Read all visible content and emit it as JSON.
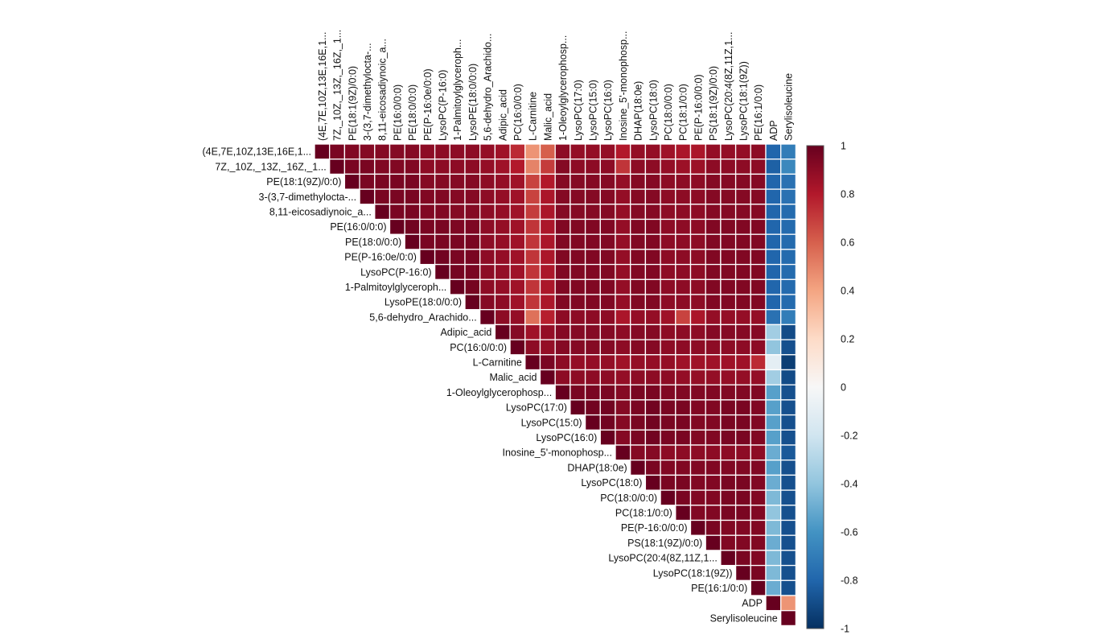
{
  "chart_data": {
    "type": "heatmap",
    "subtype": "upper-triangle correlation matrix",
    "labels": [
      "(4E,7E,10Z,13E,16E,1...",
      "7Z,_10Z,_13Z,_16Z,_1...",
      "PE(18:1(9Z)/0:0)",
      "3-(3,7-dimethylocta-...",
      "8,11-eicosadiynoic_a...",
      "PE(16:0/0:0)",
      "PE(18:0/0:0)",
      "PE(P-16:0e/0:0)",
      "LysoPC(P-16:0)",
      "1-Palmitoylglyceroph...",
      "LysoPE(18:0/0:0)",
      "5,6-dehydro_Arachido...",
      "Adipic_acid",
      "PC(16:0/0:0)",
      "L-Carnitine",
      "Malic_acid",
      "1-Oleoylglycerophosp...",
      "LysoPC(17:0)",
      "LysoPC(15:0)",
      "LysoPC(16:0)",
      "Inosine_5'-monophosp...",
      "DHAP(18:0e)",
      "LysoPC(18:0)",
      "PC(18:0/0:0)",
      "PC(18:1/0:0)",
      "PE(P-16:0/0:0)",
      "PS(18:1(9Z)/0:0)",
      "LysoPC(20:4(8Z,11Z,1...",
      "LysoPC(18:1(9Z))",
      "PE(16:1/0:0)",
      "ADP",
      "Serylisoleucine"
    ],
    "matrix": [
      [
        1.0,
        0.95,
        0.93,
        0.92,
        0.92,
        0.92,
        0.92,
        0.9,
        0.9,
        0.9,
        0.9,
        0.88,
        0.85,
        0.75,
        0.45,
        0.6,
        0.9,
        0.88,
        0.88,
        0.88,
        0.8,
        0.88,
        0.88,
        0.85,
        0.82,
        0.82,
        0.88,
        0.88,
        0.88,
        0.9,
        -0.8,
        -0.7
      ],
      [
        null,
        1.0,
        0.95,
        0.95,
        0.93,
        0.93,
        0.93,
        0.9,
        0.9,
        0.9,
        0.9,
        0.88,
        0.85,
        0.8,
        0.5,
        0.7,
        0.92,
        0.9,
        0.9,
        0.9,
        0.72,
        0.9,
        0.9,
        0.88,
        0.86,
        0.86,
        0.9,
        0.9,
        0.9,
        0.9,
        -0.82,
        -0.65
      ],
      [
        null,
        null,
        1.0,
        0.95,
        0.95,
        0.95,
        0.95,
        0.92,
        0.92,
        0.92,
        0.92,
        0.9,
        0.88,
        0.85,
        0.68,
        0.8,
        0.92,
        0.92,
        0.92,
        0.92,
        0.88,
        0.92,
        0.92,
        0.9,
        0.9,
        0.9,
        0.92,
        0.92,
        0.92,
        0.92,
        -0.8,
        -0.75
      ],
      [
        null,
        null,
        null,
        1.0,
        0.95,
        0.95,
        0.95,
        0.93,
        0.93,
        0.92,
        0.92,
        0.9,
        0.88,
        0.85,
        0.68,
        0.82,
        0.92,
        0.92,
        0.92,
        0.92,
        0.88,
        0.92,
        0.92,
        0.9,
        0.9,
        0.9,
        0.92,
        0.92,
        0.92,
        0.92,
        -0.8,
        -0.75
      ],
      [
        null,
        null,
        null,
        null,
        1.0,
        0.95,
        0.95,
        0.93,
        0.93,
        0.92,
        0.92,
        0.9,
        0.88,
        0.85,
        0.7,
        0.82,
        0.92,
        0.92,
        0.92,
        0.92,
        0.88,
        0.92,
        0.92,
        0.9,
        0.9,
        0.9,
        0.92,
        0.92,
        0.92,
        0.92,
        -0.8,
        -0.78
      ],
      [
        null,
        null,
        null,
        null,
        null,
        1.0,
        0.97,
        0.95,
        0.95,
        0.94,
        0.94,
        0.9,
        0.88,
        0.85,
        0.72,
        0.82,
        0.93,
        0.93,
        0.93,
        0.93,
        0.88,
        0.93,
        0.93,
        0.9,
        0.9,
        0.9,
        0.93,
        0.93,
        0.93,
        0.93,
        -0.8,
        -0.78
      ],
      [
        null,
        null,
        null,
        null,
        null,
        null,
        1.0,
        0.95,
        0.95,
        0.95,
        0.95,
        0.9,
        0.88,
        0.85,
        0.72,
        0.82,
        0.93,
        0.93,
        0.93,
        0.93,
        0.88,
        0.93,
        0.93,
        0.9,
        0.9,
        0.9,
        0.93,
        0.93,
        0.93,
        0.93,
        -0.8,
        -0.78
      ],
      [
        null,
        null,
        null,
        null,
        null,
        null,
        null,
        1.0,
        0.97,
        0.95,
        0.95,
        0.9,
        0.88,
        0.85,
        0.72,
        0.82,
        0.93,
        0.93,
        0.93,
        0.93,
        0.88,
        0.93,
        0.93,
        0.9,
        0.9,
        0.9,
        0.93,
        0.93,
        0.93,
        0.93,
        -0.8,
        -0.78
      ],
      [
        null,
        null,
        null,
        null,
        null,
        null,
        null,
        null,
        1.0,
        0.96,
        0.95,
        0.9,
        0.88,
        0.85,
        0.72,
        0.82,
        0.93,
        0.93,
        0.93,
        0.93,
        0.88,
        0.93,
        0.93,
        0.9,
        0.9,
        0.9,
        0.93,
        0.93,
        0.93,
        0.93,
        -0.8,
        -0.78
      ],
      [
        null,
        null,
        null,
        null,
        null,
        null,
        null,
        null,
        null,
        1.0,
        0.96,
        0.9,
        0.88,
        0.85,
        0.72,
        0.82,
        0.93,
        0.93,
        0.93,
        0.93,
        0.88,
        0.93,
        0.93,
        0.9,
        0.9,
        0.9,
        0.93,
        0.93,
        0.93,
        0.93,
        -0.8,
        -0.78
      ],
      [
        null,
        null,
        null,
        null,
        null,
        null,
        null,
        null,
        null,
        null,
        1.0,
        0.92,
        0.9,
        0.85,
        0.72,
        0.82,
        0.93,
        0.93,
        0.93,
        0.93,
        0.88,
        0.93,
        0.93,
        0.9,
        0.9,
        0.9,
        0.93,
        0.93,
        0.93,
        0.93,
        -0.8,
        -0.78
      ],
      [
        null,
        null,
        null,
        null,
        null,
        null,
        null,
        null,
        null,
        null,
        null,
        1.0,
        0.9,
        0.88,
        0.55,
        0.78,
        0.9,
        0.9,
        0.9,
        0.9,
        0.82,
        0.88,
        0.88,
        0.85,
        0.68,
        0.82,
        0.88,
        0.88,
        0.88,
        0.88,
        -0.75,
        -0.7
      ],
      [
        null,
        null,
        null,
        null,
        null,
        null,
        null,
        null,
        null,
        null,
        null,
        null,
        1.0,
        0.92,
        0.85,
        0.88,
        0.92,
        0.92,
        0.92,
        0.92,
        0.9,
        0.92,
        0.92,
        0.9,
        0.9,
        0.9,
        0.92,
        0.92,
        0.92,
        0.92,
        -0.35,
        -0.9
      ],
      [
        null,
        null,
        null,
        null,
        null,
        null,
        null,
        null,
        null,
        null,
        null,
        null,
        null,
        1.0,
        0.9,
        0.88,
        0.92,
        0.92,
        0.92,
        0.92,
        0.9,
        0.92,
        0.92,
        0.9,
        0.9,
        0.9,
        0.9,
        0.9,
        0.9,
        0.9,
        -0.4,
        -0.88
      ],
      [
        null,
        null,
        null,
        null,
        null,
        null,
        null,
        null,
        null,
        null,
        null,
        null,
        null,
        null,
        1.0,
        0.95,
        0.9,
        0.88,
        0.88,
        0.88,
        0.85,
        0.88,
        0.88,
        0.88,
        0.85,
        0.85,
        0.85,
        0.85,
        0.85,
        0.75,
        -0.1,
        -0.95
      ],
      [
        null,
        null,
        null,
        null,
        null,
        null,
        null,
        null,
        null,
        null,
        null,
        null,
        null,
        null,
        null,
        1.0,
        0.9,
        0.9,
        0.9,
        0.9,
        0.88,
        0.9,
        0.9,
        0.9,
        0.88,
        0.88,
        0.88,
        0.88,
        0.88,
        0.88,
        -0.35,
        -0.9
      ],
      [
        null,
        null,
        null,
        null,
        null,
        null,
        null,
        null,
        null,
        null,
        null,
        null,
        null,
        null,
        null,
        null,
        1.0,
        0.95,
        0.95,
        0.95,
        0.92,
        0.95,
        0.95,
        0.93,
        0.93,
        0.93,
        0.93,
        0.93,
        0.93,
        0.93,
        -0.55,
        -0.88
      ],
      [
        null,
        null,
        null,
        null,
        null,
        null,
        null,
        null,
        null,
        null,
        null,
        null,
        null,
        null,
        null,
        null,
        null,
        1.0,
        0.97,
        0.97,
        0.92,
        0.95,
        0.97,
        0.95,
        0.95,
        0.93,
        0.93,
        0.95,
        0.95,
        0.93,
        -0.55,
        -0.88
      ],
      [
        null,
        null,
        null,
        null,
        null,
        null,
        null,
        null,
        null,
        null,
        null,
        null,
        null,
        null,
        null,
        null,
        null,
        null,
        1.0,
        0.97,
        0.92,
        0.95,
        0.97,
        0.95,
        0.95,
        0.93,
        0.93,
        0.95,
        0.95,
        0.93,
        -0.55,
        -0.88
      ],
      [
        null,
        null,
        null,
        null,
        null,
        null,
        null,
        null,
        null,
        null,
        null,
        null,
        null,
        null,
        null,
        null,
        null,
        null,
        null,
        1.0,
        0.92,
        0.95,
        0.97,
        0.95,
        0.95,
        0.93,
        0.93,
        0.95,
        0.95,
        0.93,
        -0.55,
        -0.88
      ],
      [
        null,
        null,
        null,
        null,
        null,
        null,
        null,
        null,
        null,
        null,
        null,
        null,
        null,
        null,
        null,
        null,
        null,
        null,
        null,
        null,
        1.0,
        0.92,
        0.92,
        0.9,
        0.9,
        0.9,
        0.9,
        0.9,
        0.9,
        0.9,
        -0.5,
        -0.85
      ],
      [
        null,
        null,
        null,
        null,
        null,
        null,
        null,
        null,
        null,
        null,
        null,
        null,
        null,
        null,
        null,
        null,
        null,
        null,
        null,
        null,
        null,
        1.0,
        0.95,
        0.93,
        0.93,
        0.93,
        0.93,
        0.93,
        0.93,
        0.93,
        -0.55,
        -0.88
      ],
      [
        null,
        null,
        null,
        null,
        null,
        null,
        null,
        null,
        null,
        null,
        null,
        null,
        null,
        null,
        null,
        null,
        null,
        null,
        null,
        null,
        null,
        null,
        1.0,
        0.95,
        0.95,
        0.93,
        0.93,
        0.95,
        0.95,
        0.93,
        -0.5,
        -0.88
      ],
      [
        null,
        null,
        null,
        null,
        null,
        null,
        null,
        null,
        null,
        null,
        null,
        null,
        null,
        null,
        null,
        null,
        null,
        null,
        null,
        null,
        null,
        null,
        null,
        1.0,
        0.95,
        0.93,
        0.93,
        0.95,
        0.95,
        0.93,
        -0.45,
        -0.88
      ],
      [
        null,
        null,
        null,
        null,
        null,
        null,
        null,
        null,
        null,
        null,
        null,
        null,
        null,
        null,
        null,
        null,
        null,
        null,
        null,
        null,
        null,
        null,
        null,
        null,
        1.0,
        0.93,
        0.93,
        0.95,
        0.95,
        0.93,
        -0.4,
        -0.88
      ],
      [
        null,
        null,
        null,
        null,
        null,
        null,
        null,
        null,
        null,
        null,
        null,
        null,
        null,
        null,
        null,
        null,
        null,
        null,
        null,
        null,
        null,
        null,
        null,
        null,
        null,
        1.0,
        0.95,
        0.93,
        0.93,
        0.93,
        -0.45,
        -0.88
      ],
      [
        null,
        null,
        null,
        null,
        null,
        null,
        null,
        null,
        null,
        null,
        null,
        null,
        null,
        null,
        null,
        null,
        null,
        null,
        null,
        null,
        null,
        null,
        null,
        null,
        null,
        null,
        1.0,
        0.93,
        0.93,
        0.93,
        -0.5,
        -0.88
      ],
      [
        null,
        null,
        null,
        null,
        null,
        null,
        null,
        null,
        null,
        null,
        null,
        null,
        null,
        null,
        null,
        null,
        null,
        null,
        null,
        null,
        null,
        null,
        null,
        null,
        null,
        null,
        null,
        1.0,
        0.95,
        0.93,
        -0.45,
        -0.88
      ],
      [
        null,
        null,
        null,
        null,
        null,
        null,
        null,
        null,
        null,
        null,
        null,
        null,
        null,
        null,
        null,
        null,
        null,
        null,
        null,
        null,
        null,
        null,
        null,
        null,
        null,
        null,
        null,
        null,
        1.0,
        0.95,
        -0.45,
        -0.88
      ],
      [
        null,
        null,
        null,
        null,
        null,
        null,
        null,
        null,
        null,
        null,
        null,
        null,
        null,
        null,
        null,
        null,
        null,
        null,
        null,
        null,
        null,
        null,
        null,
        null,
        null,
        null,
        null,
        null,
        null,
        1.0,
        -0.5,
        -0.88
      ],
      [
        null,
        null,
        null,
        null,
        null,
        null,
        null,
        null,
        null,
        null,
        null,
        null,
        null,
        null,
        null,
        null,
        null,
        null,
        null,
        null,
        null,
        null,
        null,
        null,
        null,
        null,
        null,
        null,
        null,
        null,
        1.0,
        0.45
      ],
      [
        null,
        null,
        null,
        null,
        null,
        null,
        null,
        null,
        null,
        null,
        null,
        null,
        null,
        null,
        null,
        null,
        null,
        null,
        null,
        null,
        null,
        null,
        null,
        null,
        null,
        null,
        null,
        null,
        null,
        null,
        null,
        1.0
      ]
    ],
    "color_scale": {
      "min": -1,
      "max": 1,
      "ticks": [
        "1",
        "0.8",
        "0.6",
        "0.4",
        "0.2",
        "0",
        "-0.2",
        "-0.4",
        "-0.6",
        "-0.8",
        "-1"
      ],
      "stops": [
        {
          "value": -1,
          "color": "#053061"
        },
        {
          "value": -0.8,
          "color": "#2166ac"
        },
        {
          "value": -0.6,
          "color": "#4393c3"
        },
        {
          "value": -0.4,
          "color": "#92c5de"
        },
        {
          "value": -0.2,
          "color": "#d1e5f0"
        },
        {
          "value": 0,
          "color": "#f7f7f7"
        },
        {
          "value": 0.2,
          "color": "#fddbc7"
        },
        {
          "value": 0.4,
          "color": "#f4a582"
        },
        {
          "value": 0.6,
          "color": "#d6604d"
        },
        {
          "value": 0.8,
          "color": "#b2182b"
        },
        {
          "value": 1,
          "color": "#67001f"
        }
      ]
    },
    "legend_position": "right",
    "grid": true,
    "title": "",
    "xlabel": "",
    "ylabel": ""
  }
}
